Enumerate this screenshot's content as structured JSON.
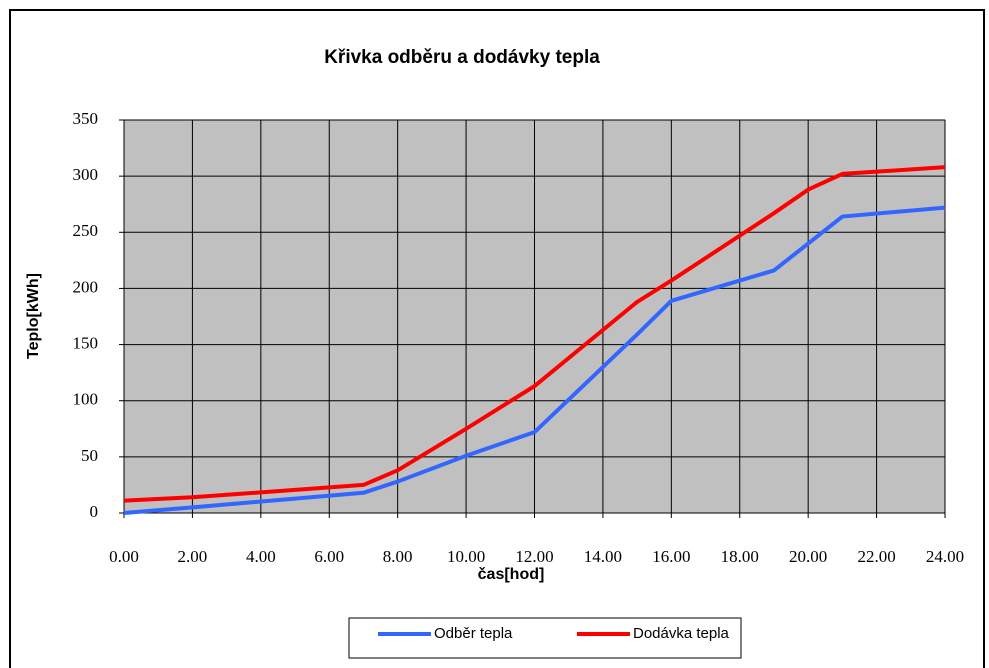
{
  "chart_data": {
    "type": "line",
    "title": "Křivka odběru a dodávky tepla",
    "x_label": "čas[hod]",
    "y_label": "Teplo[kWh]",
    "x": [
      0,
      2,
      7,
      8,
      10,
      12,
      15,
      16,
      19,
      20,
      21,
      24
    ],
    "series": [
      {
        "name": "Odběr tepla",
        "color": "#3366ff",
        "values": [
          0,
          5,
          18,
          28,
          51,
          72,
          159,
          189,
          216,
          240,
          264,
          272
        ]
      },
      {
        "name": "Dodávka tepla",
        "color": "#ff0000",
        "values": [
          11,
          14,
          25,
          38,
          75,
          113,
          188,
          207,
          267,
          288,
          302,
          308
        ]
      }
    ],
    "xlim": [
      0,
      24
    ],
    "xticks": [
      {
        "value": 0,
        "label": "0.00"
      },
      {
        "value": 2,
        "label": "2.00"
      },
      {
        "value": 4,
        "label": "4.00"
      },
      {
        "value": 6,
        "label": "6.00"
      },
      {
        "value": 8,
        "label": "8.00"
      },
      {
        "value": 10,
        "label": "10.00"
      },
      {
        "value": 12,
        "label": "12.00"
      },
      {
        "value": 14,
        "label": "14.00"
      },
      {
        "value": 16,
        "label": "16.00"
      },
      {
        "value": 18,
        "label": "18.00"
      },
      {
        "value": 20,
        "label": "20.00"
      },
      {
        "value": 22,
        "label": "22.00"
      },
      {
        "value": 24,
        "label": "24.00"
      }
    ],
    "ylim": [
      0,
      350
    ],
    "yticks": [
      0,
      50,
      100,
      150,
      200,
      250,
      300,
      350
    ],
    "grid": true,
    "legend": "bottom"
  }
}
